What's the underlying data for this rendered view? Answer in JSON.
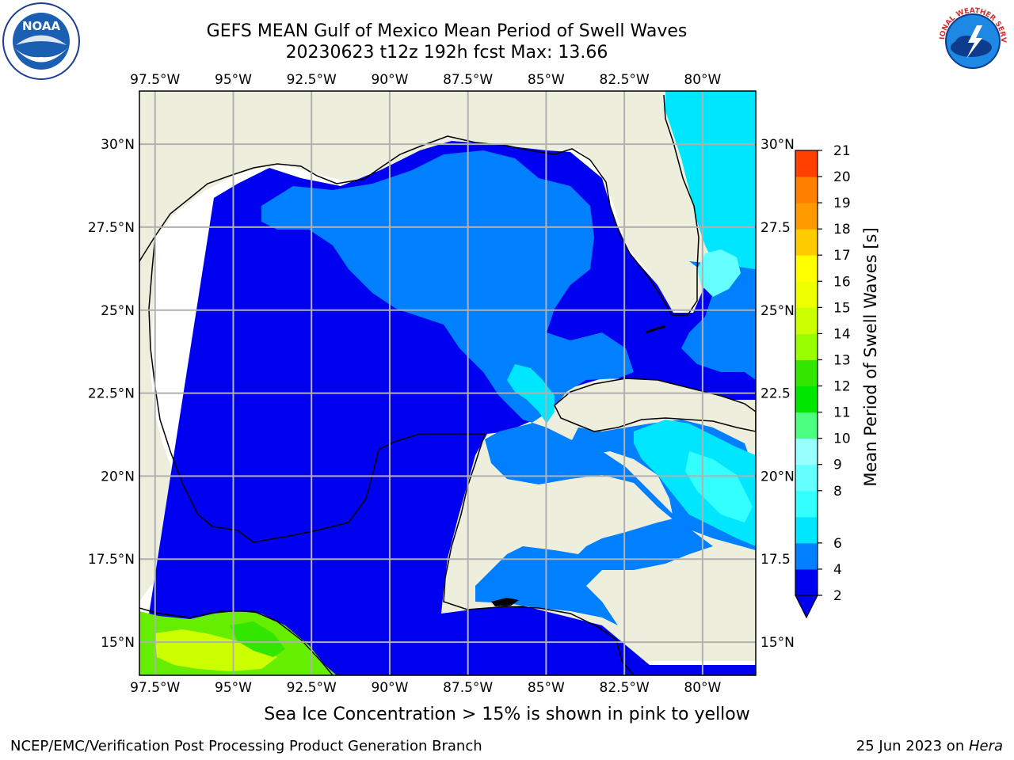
{
  "header": {
    "title_line1": "GEFS MEAN Gulf of Mexico Mean Period of Swell Waves",
    "title_line2": "20230623 t12z 192h fcst   Max: 13.66"
  },
  "logos": {
    "left": "noaa-logo",
    "left_text": "NOAA",
    "left_ring_text": "NATIONAL OCEANIC AND ATMOSPHERIC ADMINISTRATION · U.S. DEPARTMENT OF COMMERCE",
    "right": "nws-logo",
    "right_ring_text": "NATIONAL WEATHER SERVICE"
  },
  "chart_data": {
    "type": "heatmap",
    "title": "GEFS MEAN Gulf of Mexico Mean Period of Swell Waves",
    "subtitle": "20230623 t12z 192h fcst   Max: 13.66",
    "max_value": 13.66,
    "x_ticks": [
      "97.5°W",
      "95°W",
      "92.5°W",
      "90°W",
      "87.5°W",
      "85°W",
      "82.5°W",
      "80°W"
    ],
    "x_tick_values": [
      -97.5,
      -95,
      -92.5,
      -90,
      -87.5,
      -85,
      -82.5,
      -80
    ],
    "y_ticks_left": [
      "30°N",
      "27.5°N",
      "25°N",
      "22.5°N",
      "20°N",
      "17.5°N",
      "15°N"
    ],
    "y_ticks_right": [
      "30°N",
      "27.5",
      "25°N",
      "22.5",
      "20°N",
      "17.5",
      "15°N"
    ],
    "y_tick_values": [
      30,
      27.5,
      25,
      22.5,
      20,
      17.5,
      15
    ],
    "xlim": [
      -98,
      -78.3
    ],
    "ylim": [
      14.0,
      31.6
    ],
    "grid": true,
    "colorbar": {
      "label": "Mean Period of Swell Waves [s]",
      "levels": [
        2,
        4,
        6,
        7,
        8,
        9,
        10,
        11,
        12,
        13,
        14,
        15,
        16,
        17,
        18,
        19,
        20,
        21
      ],
      "tick_labels": [
        "2",
        "4",
        "6",
        "8",
        "9",
        "10",
        "11",
        "12",
        "13",
        "14",
        "15",
        "16",
        "17",
        "18",
        "19",
        "20",
        "21"
      ],
      "tick_values": [
        2,
        4,
        6,
        8,
        9,
        10,
        11,
        12,
        13,
        14,
        15,
        16,
        17,
        18,
        19,
        20,
        21
      ],
      "colors": [
        "#0000f0",
        "#0080ff",
        "#00e6ff",
        "#33ffff",
        "#66ffff",
        "#99ffff",
        "#4dff80",
        "#00e600",
        "#33e600",
        "#99ff00",
        "#ccff00",
        "#eeff00",
        "#ffff00",
        "#ffcc00",
        "#ff9900",
        "#ff8000",
        "#ff4000",
        "#ff0000"
      ],
      "extend": "min"
    },
    "colors": {
      "land": "#eeeedd",
      "ocean_no_data": "#ffffff",
      "coast": "#000000",
      "grid": "#b0b0b0"
    }
  },
  "note": "Sea Ice Concentration > 15% is shown in pink to yellow",
  "footer": {
    "left": "NCEP/EMC/Verification Post Processing Product Generation Branch",
    "right_date": "25 Jun 2023 on ",
    "right_host": "Hera"
  }
}
